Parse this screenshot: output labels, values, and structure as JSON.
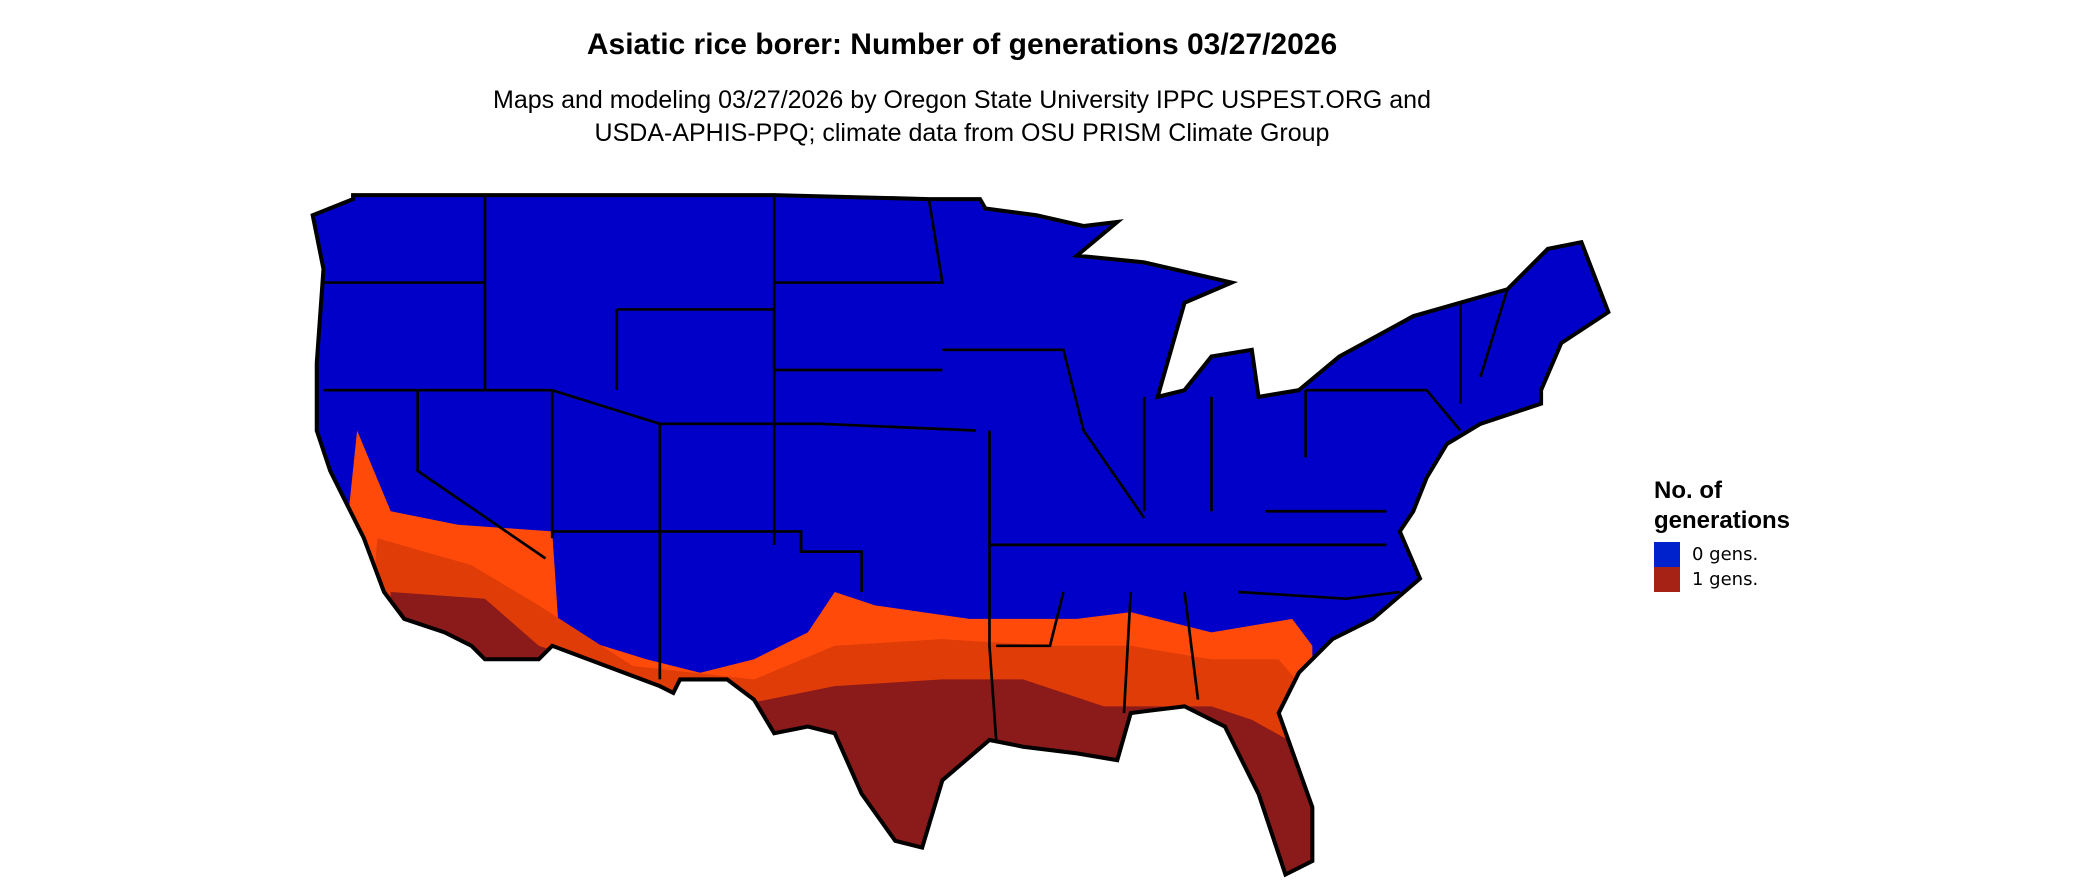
{
  "title": "Asiatic rice borer: Number of generations 03/27/2026",
  "subtitle_line1": "Maps and modeling 03/27/2026 by Oregon State University IPPC USPEST.ORG and",
  "subtitle_line2": "USDA-APHIS-PPQ; climate data from OSU PRISM Climate Group",
  "legend": {
    "title_line1": "No. of",
    "title_line2": "generations",
    "items": [
      {
        "label": "0 gens.",
        "color": "#0022cc"
      },
      {
        "label": "1 gens.",
        "color": "#a52214"
      }
    ]
  },
  "colors": {
    "zero_gens": "#0000c8",
    "one_gen_low": "#ff4a0a",
    "one_gen_mid": "#e03c08",
    "one_gen_high": "#8b1a1a",
    "borders": "#000000"
  }
}
